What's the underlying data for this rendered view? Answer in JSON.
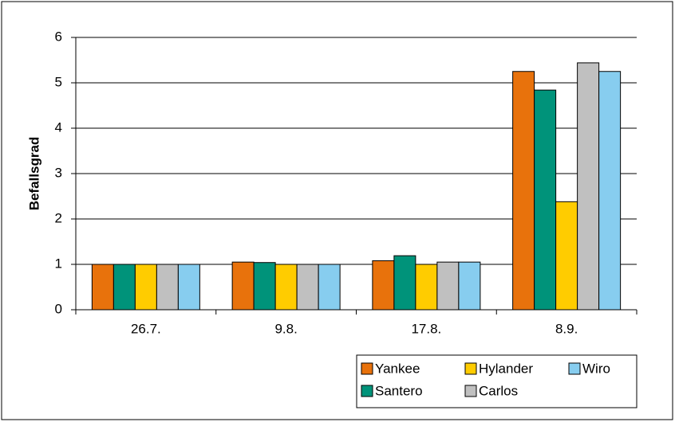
{
  "chart_data": {
    "type": "bar",
    "y_label": "Befallsgrad",
    "categories": [
      "26.7.",
      "9.8.",
      "17.8.",
      "8.9."
    ],
    "series": [
      {
        "name": "Yankee",
        "color": "#e8720c",
        "values": [
          1.0,
          1.05,
          1.08,
          5.25
        ]
      },
      {
        "name": "Santero",
        "color": "#00937a",
        "values": [
          1.0,
          1.04,
          1.19,
          4.84
        ]
      },
      {
        "name": "Hylander",
        "color": "#ffcc00",
        "values": [
          1.0,
          1.0,
          1.0,
          2.38
        ]
      },
      {
        "name": "Carlos",
        "color": "#c0c0c0",
        "values": [
          1.0,
          1.0,
          1.05,
          5.44
        ]
      },
      {
        "name": "Wiro",
        "color": "#87cdef",
        "values": [
          1.0,
          1.0,
          1.05,
          5.25
        ]
      }
    ],
    "ylim": [
      0,
      6
    ],
    "yticks": [
      0,
      1,
      2,
      3,
      4,
      5,
      6
    ],
    "grid": true,
    "legend": "bottom-right"
  }
}
